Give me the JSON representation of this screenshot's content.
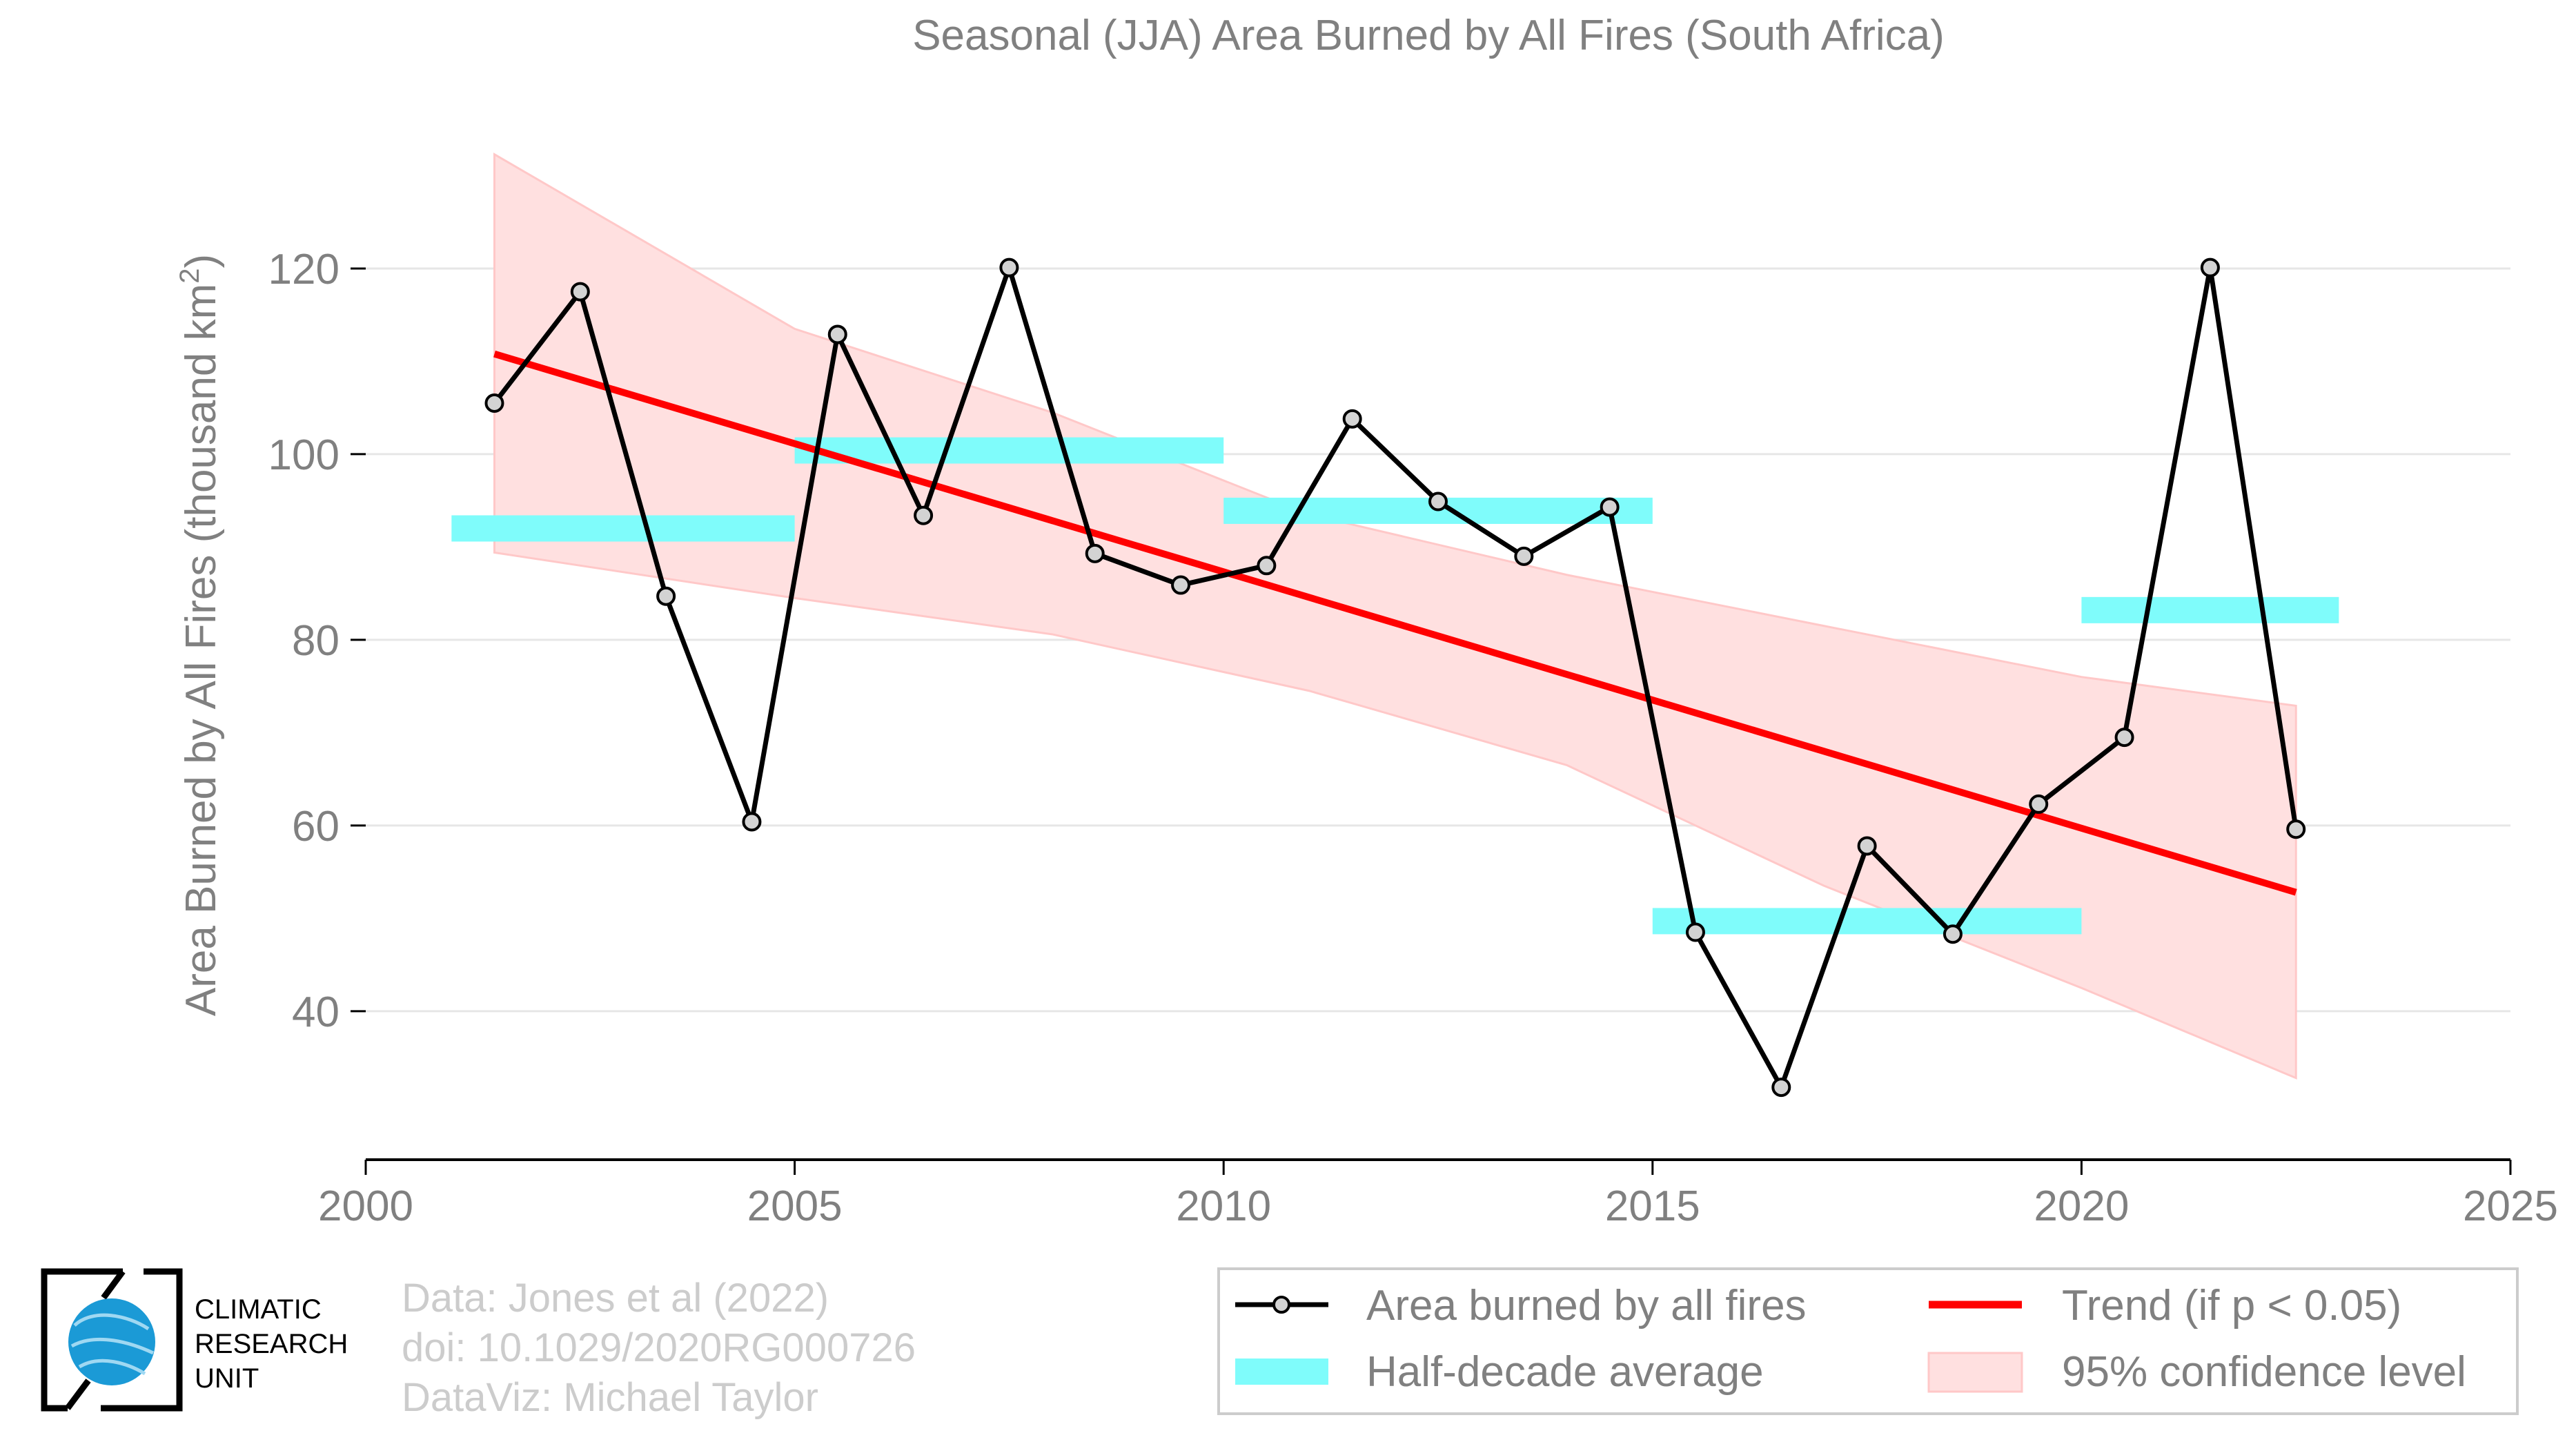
{
  "chart_data": {
    "type": "line",
    "title": "Seasonal (JJA) Area Burned by All Fires (South Africa)",
    "ylabel_main": "Area Burned by All Fires (thousand km",
    "ylabel_sup": "2",
    "ylabel_tail": ")",
    "xlabel": "",
    "xlim": [
      2000,
      2025
    ],
    "ylim": [
      24,
      140
    ],
    "x_ticks": [
      2000,
      2005,
      2010,
      2015,
      2020,
      2025
    ],
    "y_ticks": [
      40,
      60,
      80,
      100,
      120
    ],
    "grid": "horizontal",
    "legend_position": "bottom-right",
    "series": [
      {
        "name": "Area burned by all fires",
        "color": "#000000",
        "marker_fill": "#d3d3d3",
        "x": [
          2001.5,
          2002.5,
          2003.5,
          2004.5,
          2005.5,
          2006.5,
          2007.5,
          2008.5,
          2009.5,
          2010.5,
          2011.5,
          2012.5,
          2013.5,
          2014.5,
          2015.5,
          2016.5,
          2017.5,
          2018.5,
          2019.5,
          2020.5,
          2021.5,
          2022.5
        ],
        "y": [
          105.5,
          117.5,
          84.7,
          60.4,
          112.9,
          93.4,
          120.1,
          89.3,
          85.9,
          88.0,
          103.8,
          94.9,
          89.0,
          94.3,
          48.5,
          31.8,
          57.8,
          48.3,
          62.3,
          69.5,
          120.1,
          59.6
        ]
      }
    ],
    "half_decade_averages": {
      "name": "Half-decade average",
      "color": "#7ffcfb",
      "segments": [
        {
          "x0": 2001,
          "x1": 2005,
          "y": 92.0
        },
        {
          "x0": 2005,
          "x1": 2010,
          "y": 100.4
        },
        {
          "x0": 2010,
          "x1": 2015,
          "y": 93.9
        },
        {
          "x0": 2015,
          "x1": 2020,
          "y": 49.7
        },
        {
          "x0": 2020,
          "x1": 2023,
          "y": 83.2
        }
      ]
    },
    "trend": {
      "name": "Trend (if p < 0.05)",
      "color": "#ff0000",
      "x": [
        2001.5,
        2022.5
      ],
      "y": [
        110.8,
        52.8
      ]
    },
    "confidence_band": {
      "name": "95% confidence level",
      "color": "#ffe0e0",
      "edge_color": "#ffc8c8",
      "x": [
        2001.5,
        2005.0,
        2008.0,
        2011.0,
        2014.0,
        2017.0,
        2020.0,
        2022.5
      ],
      "upper": [
        132.3,
        113.5,
        104.5,
        93.5,
        87.0,
        81.5,
        76.0,
        72.9
      ],
      "lower": [
        89.4,
        84.5,
        80.6,
        74.5,
        66.5,
        53.5,
        42.5,
        32.8
      ]
    }
  },
  "credits": {
    "logo_line1": "CLIMATIC",
    "logo_line2": "RESEARCH",
    "logo_line3": "UNIT",
    "data_line": "Data: Jones et al (2022)",
    "doi_line": "doi: 10.1029/2020RG000726",
    "dataviz_line": "DataViz: Michael Taylor"
  },
  "legend": {
    "items": [
      {
        "label": "Area burned by all fires",
        "kind": "line-marker"
      },
      {
        "label": "Trend (if p < 0.05)",
        "kind": "line"
      },
      {
        "label": "Half-decade average",
        "kind": "bar"
      },
      {
        "label": "95% confidence level",
        "kind": "patch"
      }
    ]
  },
  "colors": {
    "text_gray": "#808080",
    "credit_gray": "#cccccc",
    "grid": "#e6e6e6",
    "logo_blue": "#1b9ad6"
  }
}
